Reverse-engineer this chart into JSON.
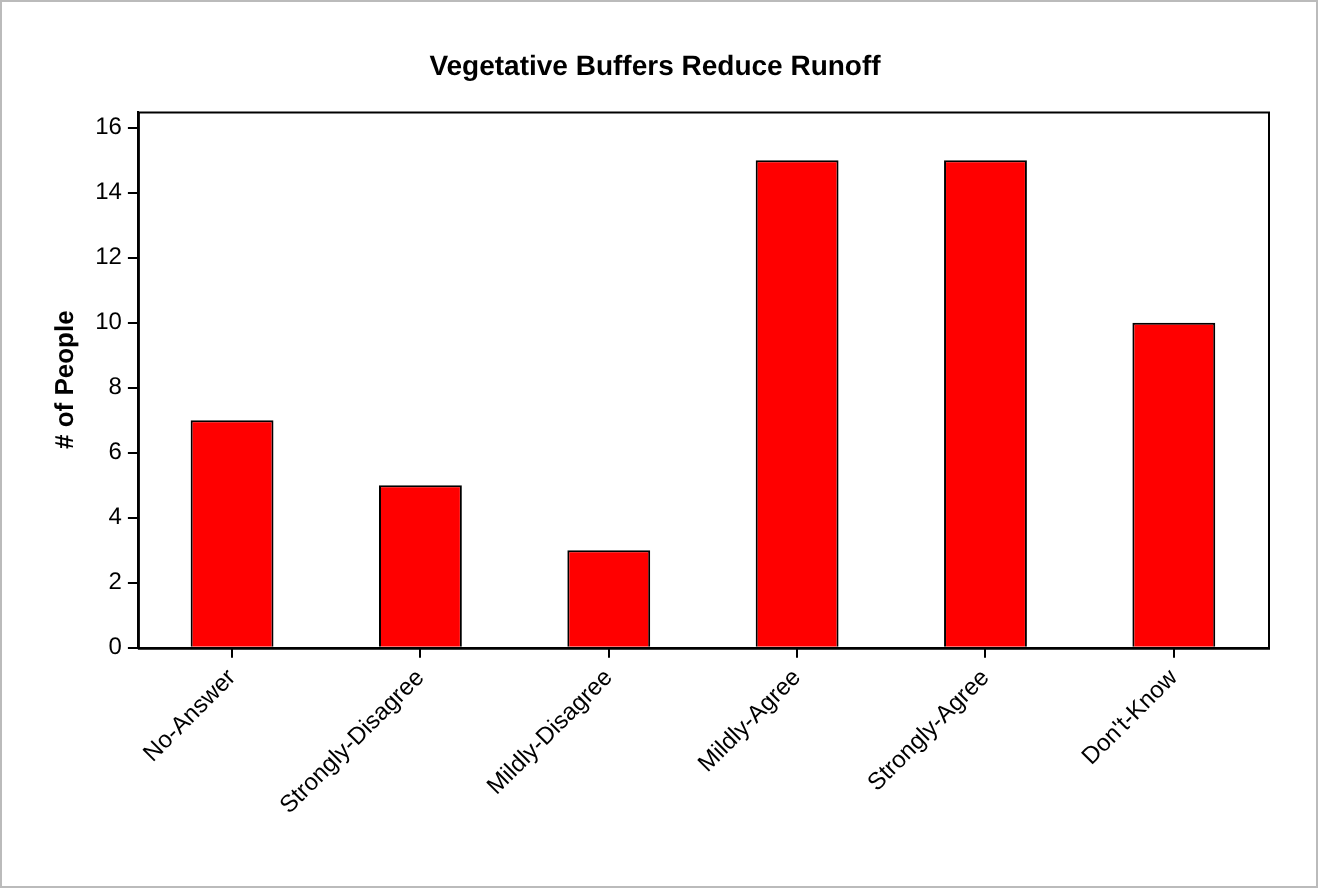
{
  "chart_data": {
    "type": "bar",
    "title": "Vegetative Buffers Reduce Runoff",
    "ylabel": "# of People",
    "categories": [
      "No-Answer",
      "Strongly-Disagree",
      "Mildly-Disagree",
      "Mildly-Agree",
      "Strongly-Agree",
      "Don't-Know"
    ],
    "values": [
      7,
      5,
      3,
      15,
      15,
      10
    ],
    "color": "#ff0000",
    "ylim": [
      0,
      16.5
    ],
    "yticks": [
      0,
      2,
      4,
      6,
      8,
      10,
      12,
      14,
      16
    ],
    "grid": false,
    "legend": false
  }
}
